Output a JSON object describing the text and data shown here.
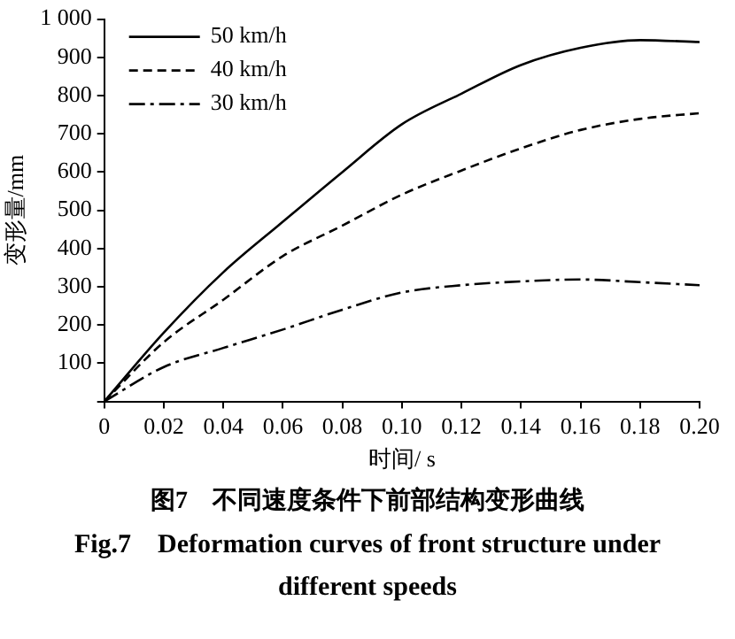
{
  "chart_data": {
    "type": "line",
    "xlabel": "时间/ s",
    "ylabel": "变形量/mm",
    "x": [
      0,
      0.02,
      0.04,
      0.06,
      0.08,
      0.1,
      0.12,
      0.14,
      0.16,
      0.18,
      0.2
    ],
    "series": [
      {
        "name": "50 km/h",
        "color": "#000000",
        "line_style": "solid",
        "values": [
          0,
          180,
          338,
          470,
          600,
          725,
          805,
          880,
          925,
          945,
          940
        ]
      },
      {
        "name": "40 km/h",
        "color": "#000000",
        "line_style": "dashed",
        "values": [
          0,
          155,
          266,
          380,
          460,
          541,
          604,
          662,
          710,
          739,
          754
        ]
      },
      {
        "name": "30 km/h",
        "color": "#000000",
        "line_style": "dotted",
        "values": [
          0,
          90,
          140,
          188,
          240,
          285,
          304,
          314,
          319,
          312,
          304
        ]
      }
    ],
    "xlim": [
      0,
      0.2
    ],
    "ylim": [
      0,
      1000
    ],
    "xticks": [
      0,
      0.02,
      0.04,
      0.06,
      0.08,
      {
        "value": 0.1,
        "label": "0.10"
      },
      0.12,
      0.14,
      0.16,
      0.18,
      {
        "value": 0.2,
        "label": "0.20"
      }
    ],
    "yticks": [
      {
        "value": 0,
        "label": null
      },
      100,
      200,
      300,
      400,
      500,
      600,
      700,
      800,
      900,
      {
        "value": 1000,
        "label": "1 000"
      }
    ],
    "grid": false,
    "legend": "top left",
    "marker": "none",
    "annotations": [
      "图7　不同速度条件下前部结构变形曲线",
      "Fig.7　Deformation curves of front structure under different speeds"
    ]
  }
}
